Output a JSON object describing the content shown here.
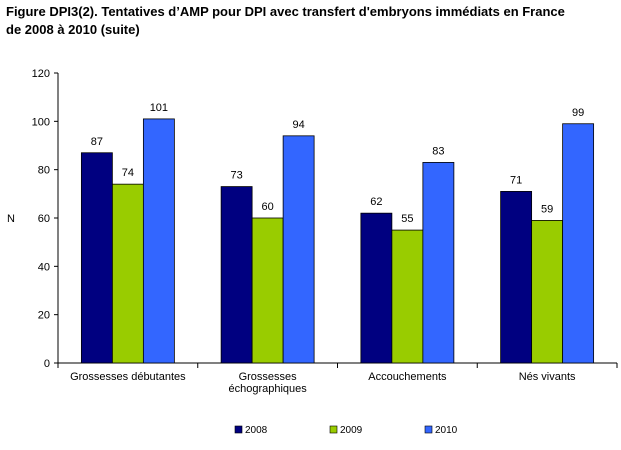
{
  "title_line1": "Figure DPI3(2). Tentatives d’AMP pour DPI avec transfert d'embryons immédiats en France",
  "title_line2": "de 2008 à 2010 (suite)",
  "chart_data": {
    "type": "bar",
    "title": "Figure DPI3(2). Tentatives d’AMP pour DPI avec transfert d'embryons immédiats en France de 2008 à 2010 (suite)",
    "categories": [
      [
        "Grossesses débutantes"
      ],
      [
        "Grossesses",
        "échographiques"
      ],
      [
        "Accouchements"
      ],
      [
        "Nés vivants"
      ]
    ],
    "series": [
      {
        "name": "2008",
        "color": "#000080",
        "values": [
          87,
          73,
          62,
          71
        ]
      },
      {
        "name": "2009",
        "color": "#99CC00",
        "values": [
          74,
          60,
          55,
          59
        ]
      },
      {
        "name": "2010",
        "color": "#3366FF",
        "values": [
          101,
          94,
          83,
          99
        ]
      }
    ],
    "xlabel": "",
    "ylabel": "N",
    "ylim": [
      0,
      120
    ],
    "yticks": [
      0,
      20,
      40,
      60,
      80,
      100,
      120
    ],
    "grid": false,
    "legend": "bottom",
    "data_labels": true
  }
}
